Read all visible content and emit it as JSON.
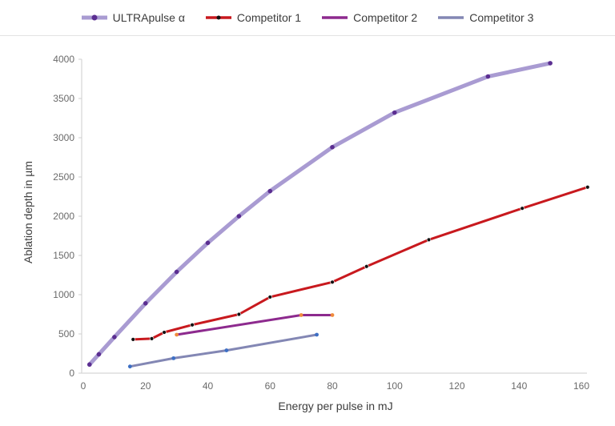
{
  "chart_data": {
    "type": "line",
    "title": "",
    "xlabel": "Energy per pulse in mJ",
    "ylabel": "Ablation depth in µm",
    "xlim": [
      0,
      160
    ],
    "ylim": [
      0,
      4000
    ],
    "x_ticks": [
      0,
      20,
      40,
      60,
      80,
      100,
      120,
      140,
      160
    ],
    "y_ticks": [
      0,
      500,
      1000,
      1500,
      2000,
      2500,
      3000,
      3500,
      4000
    ],
    "grid": false,
    "legend_position": "top",
    "series": [
      {
        "name": "ULTRApulse α",
        "line_color": "#a99bd2",
        "marker_color": "#5b2e91",
        "line_width": 5,
        "points": [
          [
            2,
            110
          ],
          [
            5,
            240
          ],
          [
            10,
            460
          ],
          [
            20,
            890
          ],
          [
            30,
            1290
          ],
          [
            40,
            1660
          ],
          [
            50,
            2000
          ],
          [
            60,
            2320
          ],
          [
            80,
            2880
          ],
          [
            100,
            3320
          ],
          [
            130,
            3780
          ],
          [
            150,
            3950
          ]
        ]
      },
      {
        "name": "Competitor 1",
        "line_color": "#c8191e",
        "marker_color": "#111111",
        "line_width": 3,
        "points": [
          [
            16,
            430
          ],
          [
            22,
            440
          ],
          [
            26,
            520
          ],
          [
            35,
            615
          ],
          [
            50,
            750
          ],
          [
            60,
            970
          ],
          [
            80,
            1160
          ],
          [
            91,
            1360
          ],
          [
            111,
            1700
          ],
          [
            141,
            2100
          ],
          [
            162,
            2370
          ]
        ]
      },
      {
        "name": "Competitor 2",
        "line_color": "#8d2a8e",
        "marker_color": "#f08a3c",
        "line_width": 3,
        "points": [
          [
            30,
            490
          ],
          [
            70,
            740
          ],
          [
            80,
            740
          ]
        ]
      },
      {
        "name": "Competitor 3",
        "line_color": "#8387b4",
        "marker_color": "#3d6fc4",
        "line_width": 3,
        "points": [
          [
            15,
            85
          ],
          [
            29,
            190
          ],
          [
            46,
            290
          ],
          [
            75,
            490
          ]
        ]
      }
    ]
  }
}
